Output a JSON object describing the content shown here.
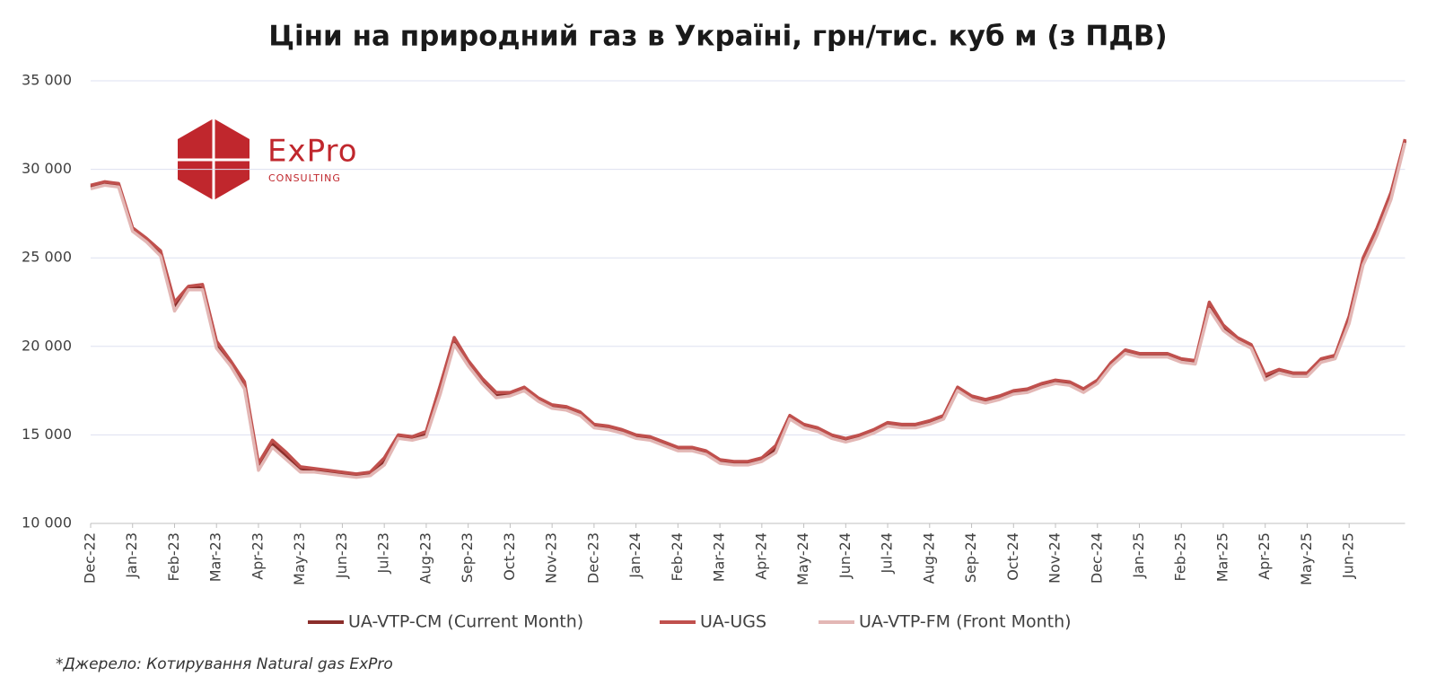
{
  "chart_data": {
    "type": "line",
    "title": "Ціни на природний газ в Україні, грн/тис. куб м (з ПДВ)",
    "logo": {
      "name": "ExPro",
      "tagline": "CONSULTING"
    },
    "source": "*Джерело: Котирування Natural gas ExPro",
    "x": [
      "Dec-22",
      null,
      null,
      "Jan-23",
      null,
      null,
      "Feb-23",
      null,
      null,
      "Mar-23",
      null,
      null,
      "Apr-23",
      null,
      null,
      "May-23",
      null,
      null,
      "Jun-23",
      null,
      null,
      "Jul-23",
      null,
      null,
      "Aug-23",
      null,
      null,
      "Sep-23",
      null,
      null,
      "Oct-23",
      null,
      null,
      "Nov-23",
      null,
      null,
      "Dec-23",
      null,
      null,
      "Jan-24",
      null,
      null,
      "Feb-24",
      null,
      null,
      "Mar-24",
      null,
      null,
      "Apr-24",
      null,
      null,
      "May-24",
      null,
      null,
      "Jun-24",
      null,
      null,
      "Jul-24",
      null,
      null,
      "Aug-24",
      null,
      null,
      "Sep-24",
      null,
      null,
      "Oct-24",
      null,
      null,
      "Nov-24",
      null,
      null,
      "Dec-24",
      null,
      null,
      "Jan-25",
      null,
      null,
      "Feb-25",
      null,
      null,
      "Mar-25",
      null,
      null,
      "Apr-25",
      null,
      null,
      "May-25",
      null,
      null,
      "Jun-25",
      null,
      null,
      null,
      null
    ],
    "series": [
      {
        "name": "UA-VTP-CM (Current Month)",
        "color": "#8b2e2b",
        "values": [
          29000,
          29200,
          29100,
          26600,
          26000,
          25200,
          22200,
          23300,
          23300,
          20000,
          19000,
          17800,
          13200,
          14500,
          13800,
          13100,
          13000,
          12900,
          12800,
          12700,
          12800,
          13500,
          14900,
          14800,
          15000,
          17500,
          20300,
          19000,
          18000,
          17200,
          17300,
          17600,
          17000,
          16600,
          16500,
          16200,
          15500,
          15400,
          15200,
          14900,
          14800,
          14500,
          14200,
          14200,
          14000,
          13500,
          13400,
          13400,
          13600,
          14200,
          16000,
          15500,
          15300,
          14900,
          14700,
          14900,
          15200,
          15600,
          15500,
          15500,
          15700,
          16000,
          17600,
          17100,
          16900,
          17100,
          17400,
          17500,
          17800,
          18000,
          17900,
          17500,
          18000,
          19000,
          19700,
          19500,
          19500,
          19500,
          19200,
          19100,
          22300,
          21000,
          20400,
          20000,
          18200,
          18600,
          18400,
          18400,
          19200,
          19400,
          21500,
          24800,
          26500,
          28500,
          31600
        ]
      },
      {
        "name": "UA-UGS",
        "color": "#c0504d",
        "values": [
          29100,
          29300,
          29200,
          26700,
          26100,
          25400,
          22500,
          23400,
          23500,
          20300,
          19200,
          18000,
          13400,
          14700,
          14000,
          13200,
          13100,
          13000,
          12900,
          12800,
          12900,
          13700,
          15000,
          14900,
          15200,
          17800,
          20500,
          19200,
          18200,
          17400,
          17400,
          17700,
          17100,
          16700,
          16600,
          16300,
          15600,
          15500,
          15300,
          15000,
          14900,
          14600,
          14300,
          14300,
          14100,
          13600,
          13500,
          13500,
          13700,
          14400,
          16100,
          15600,
          15400,
          15000,
          14800,
          15000,
          15300,
          15700,
          15600,
          15600,
          15800,
          16100,
          17700,
          17200,
          17000,
          17200,
          17500,
          17600,
          17900,
          18100,
          18000,
          17600,
          18100,
          19100,
          19800,
          19600,
          19600,
          19600,
          19300,
          19200,
          22500,
          21200,
          20500,
          20100,
          18400,
          18700,
          18500,
          18500,
          19300,
          19500,
          21700,
          25000,
          26700,
          28700,
          31700
        ]
      },
      {
        "name": "UA-VTP-FM (Front Month)",
        "color": "#e3b7b5",
        "values": [
          28900,
          29100,
          29000,
          26500,
          25900,
          25100,
          22000,
          23200,
          23200,
          19900,
          18900,
          17600,
          13000,
          14300,
          13600,
          12900,
          12900,
          12800,
          12700,
          12600,
          12700,
          13300,
          14800,
          14700,
          14900,
          17300,
          20100,
          18900,
          17900,
          17100,
          17200,
          17500,
          16900,
          16500,
          16400,
          16100,
          15400,
          15300,
          15100,
          14800,
          14700,
          14400,
          14100,
          14100,
          13900,
          13400,
          13300,
          13300,
          13500,
          14000,
          15900,
          15400,
          15200,
          14800,
          14600,
          14800,
          15100,
          15500,
          15400,
          15400,
          15600,
          15900,
          17500,
          17000,
          16800,
          17000,
          17300,
          17400,
          17700,
          17900,
          17800,
          17400,
          17900,
          18900,
          19600,
          19400,
          19400,
          19400,
          19100,
          19000,
          22100,
          20900,
          20300,
          19900,
          18100,
          18500,
          18300,
          18300,
          19100,
          19300,
          21300,
          24600,
          26300,
          28300,
          31500
        ]
      }
    ],
    "ylim": [
      10000,
      35000
    ],
    "yticks": [
      {
        "value": 10000,
        "label": "10 000"
      },
      {
        "value": 15000,
        "label": "15 000"
      },
      {
        "value": 20000,
        "label": "20 000"
      },
      {
        "value": 25000,
        "label": "25 000"
      },
      {
        "value": 30000,
        "label": "30 000"
      },
      {
        "value": 35000,
        "label": "35 000"
      }
    ],
    "grid": true
  }
}
